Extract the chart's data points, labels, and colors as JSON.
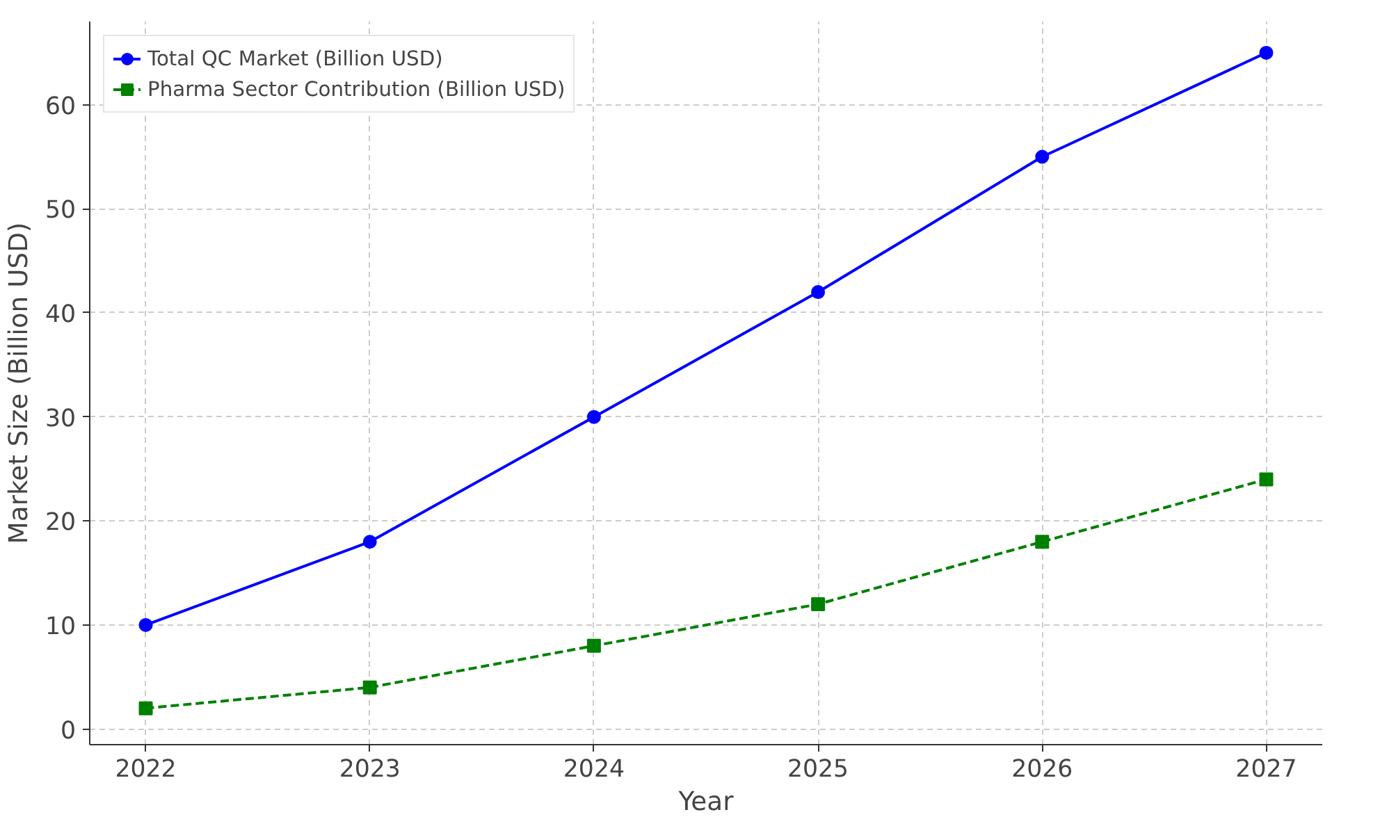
{
  "chart_data": {
    "type": "line",
    "xlabel": "Year",
    "ylabel": "Market Size (Billion USD)",
    "x": [
      2022,
      2023,
      2024,
      2025,
      2026,
      2027
    ],
    "series": [
      {
        "name": "Total QC Market (Billion USD)",
        "color": "#0000ff",
        "marker": "circle",
        "line_style": "solid",
        "values": [
          10,
          18,
          30,
          42,
          55,
          65
        ]
      },
      {
        "name": "Pharma Sector Contribution (Billion USD)",
        "color": "#008000",
        "marker": "square",
        "line_style": "dashed",
        "values": [
          2,
          4,
          8,
          12,
          18,
          24
        ]
      }
    ],
    "xlim": [
      2021.75,
      2027.25
    ],
    "ylim": [
      -1.5,
      68
    ],
    "xticks": [
      2022,
      2023,
      2024,
      2025,
      2026,
      2027
    ],
    "yticks": [
      0,
      10,
      20,
      30,
      40,
      50,
      60
    ],
    "grid": true,
    "legend": "top left"
  }
}
